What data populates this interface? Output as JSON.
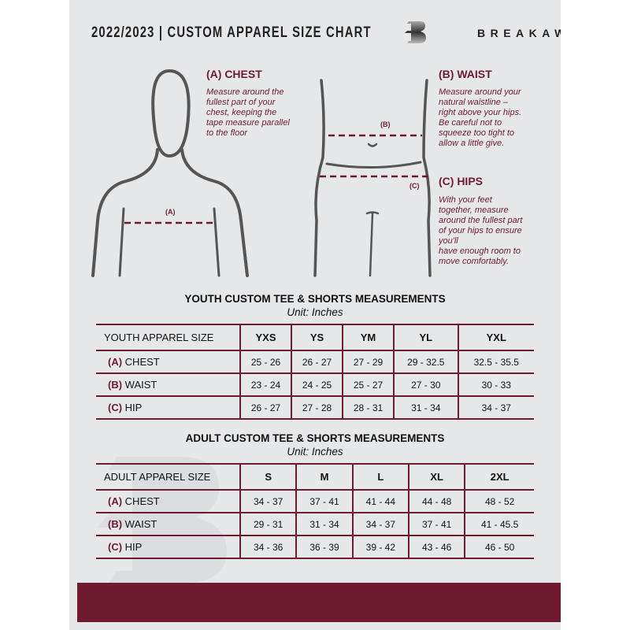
{
  "header": {
    "title": "2022/2023  |  CUSTOM APPAREL SIZE CHART",
    "brand": "BREAKAWAY",
    "logo_letter": "B"
  },
  "colors": {
    "accent": "#6e1b30",
    "background": "#e6e7e9"
  },
  "guide": {
    "chest": {
      "heading": "(A) CHEST",
      "marker": "(A)",
      "lines": [
        "Measure around the",
        "fullest part of your",
        "chest, keeping the",
        "tape measure parallel",
        "to the floor"
      ]
    },
    "waist": {
      "heading": "(B) WAIST",
      "marker": "(B)",
      "lines": [
        "Measure around your",
        "natural waistline –",
        "right above your hips.",
        "Be careful not to",
        "squeeze too tight to",
        "allow a little give."
      ]
    },
    "hips": {
      "heading": "(C) HIPS",
      "marker": "(C)",
      "lines": [
        "With your feet",
        "together, measure",
        "around the fullest part",
        "of your hips to ensure",
        "you'll",
        "have enough room to",
        "move comfortably."
      ]
    }
  },
  "youth": {
    "title": "YOUTH CUSTOM TEE & SHORTS MEASUREMENTS",
    "unit": "Unit: Inches",
    "size_label": "YOUTH APPAREL SIZE",
    "sizes": [
      "YXS",
      "YS",
      "YM",
      "YL",
      "YXL"
    ],
    "rows": [
      {
        "letter": "(A)",
        "name": "CHEST",
        "values": [
          "25 - 26",
          "26 - 27",
          "27 - 29",
          "29 - 32.5",
          "32.5 - 35.5"
        ]
      },
      {
        "letter": "(B)",
        "name": "WAIST",
        "values": [
          "23 - 24",
          "24 - 25",
          "25 - 27",
          "27 - 30",
          "30 - 33"
        ]
      },
      {
        "letter": "(C)",
        "name": "HIP",
        "values": [
          "26 - 27",
          "27 - 28",
          "28 - 31",
          "31 - 34",
          "34 - 37"
        ]
      }
    ]
  },
  "adult": {
    "title": "ADULT CUSTOM TEE & SHORTS MEASUREMENTS",
    "unit": "Unit: Inches",
    "size_label": "ADULT APPAREL SIZE",
    "sizes": [
      "S",
      "M",
      "L",
      "XL",
      "2XL"
    ],
    "rows": [
      {
        "letter": "(A)",
        "name": "CHEST",
        "values": [
          "34 - 37",
          "37 - 41",
          "41 - 44",
          "44 - 48",
          "48 - 52"
        ]
      },
      {
        "letter": "(B)",
        "name": "WAIST",
        "values": [
          "29 - 31",
          "31 - 34",
          "34 - 37",
          "37 - 41",
          "41 - 45.5"
        ]
      },
      {
        "letter": "(C)",
        "name": "HIP",
        "values": [
          "34 - 36",
          "36 - 39",
          "39 - 42",
          "43 - 46",
          "46 - 50"
        ]
      }
    ]
  }
}
